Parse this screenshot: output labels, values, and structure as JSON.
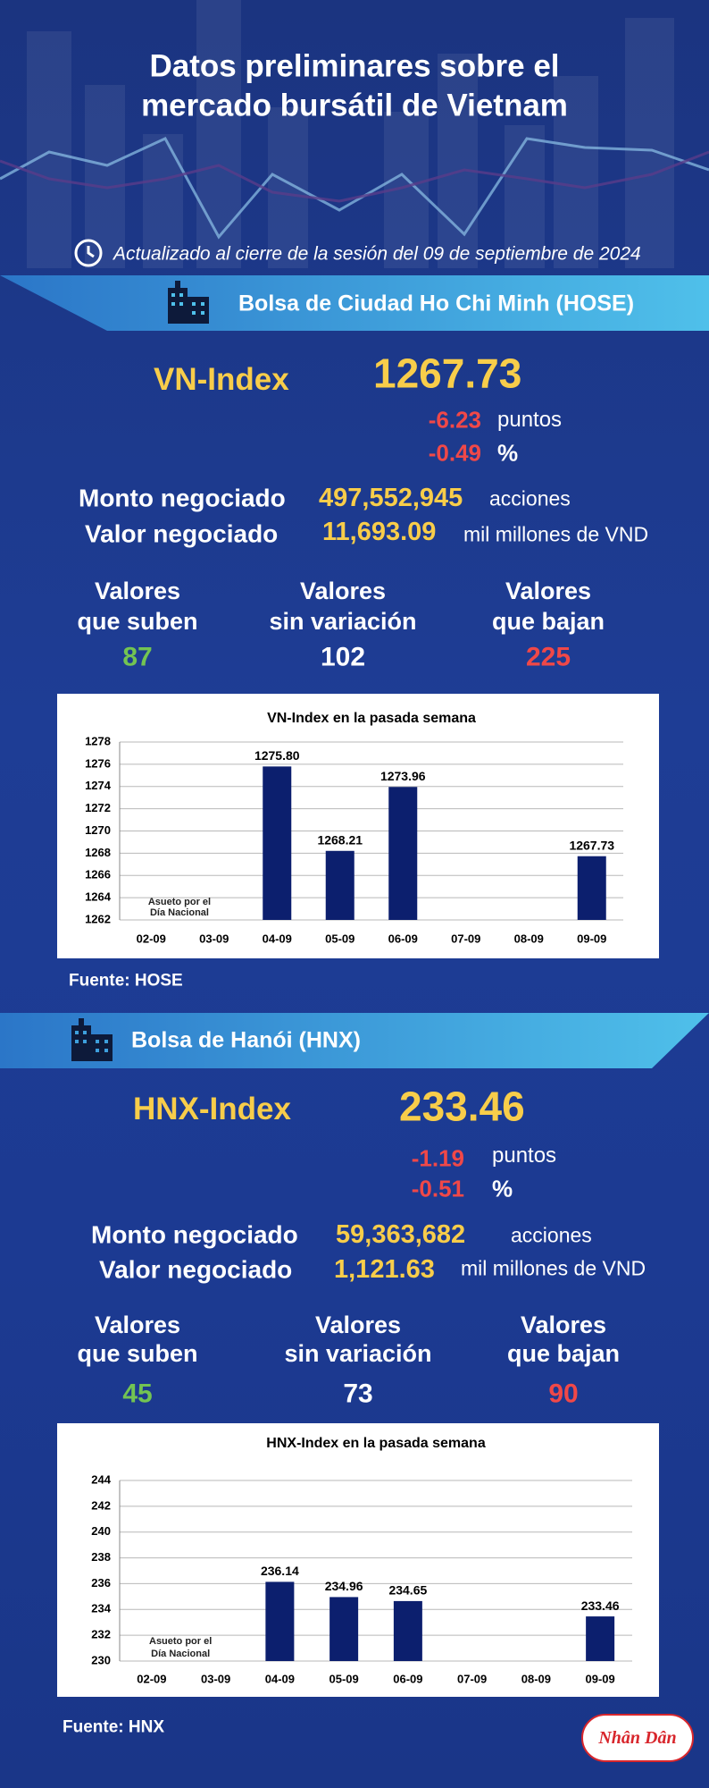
{
  "header": {
    "title": "Datos preliminares sobre el mercado bursátil de Vietnam",
    "updated": "Actualizado al cierre de la sesión del 09 de septiembre de 2024"
  },
  "sections": [
    {
      "exchange": "Bolsa de Ciudad Ho Chi Minh (HOSE)",
      "index_name": "VN-Index",
      "index_value": "1267.73",
      "change_points": "-6.23",
      "points_label": "puntos",
      "change_pct": "-0.49",
      "pct_label": "%",
      "volume_label": "Monto negociado",
      "volume": "497,552,945",
      "volume_unit": "acciones",
      "value_label": "Valor negociado",
      "value": "11,693.09",
      "value_unit": "mil millones de VND",
      "stats": [
        {
          "label": [
            "Valores",
            "que suben"
          ],
          "value": "87"
        },
        {
          "label": [
            "Valores",
            "sin variación"
          ],
          "value": "102"
        },
        {
          "label": [
            "Valores",
            "que bajan"
          ],
          "value": "225"
        }
      ],
      "chart": {
        "type": "bar",
        "title": "VN-Index en la pasada semana",
        "categories": [
          "02-09",
          "03-09",
          "04-09",
          "05-09",
          "06-09",
          "07-09",
          "08-09",
          "09-09"
        ],
        "values": [
          null,
          null,
          1275.8,
          1268.21,
          1273.96,
          null,
          null,
          1267.73
        ],
        "value_labels": [
          null,
          null,
          "1275.80",
          "1268.21",
          "1273.96",
          null,
          null,
          "1267.73"
        ],
        "color": "#0c1f6e",
        "ylim": [
          1262,
          1278
        ],
        "yticks": [
          1262,
          1264,
          1266,
          1268,
          1270,
          1272,
          1274,
          1276,
          1278
        ],
        "grid": true,
        "annotation": [
          "Asueto por el",
          "Día Nacional"
        ]
      },
      "source": "Fuente: HOSE"
    },
    {
      "exchange": "Bolsa de Hanói (HNX)",
      "index_name": "HNX-Index",
      "index_value": "233.46",
      "change_points": "-1.19",
      "points_label": "puntos",
      "change_pct": "-0.51",
      "pct_label": "%",
      "volume_label": "Monto negociado",
      "volume": "59,363,682",
      "volume_unit": "acciones",
      "value_label": "Valor negociado",
      "value": "1,121.63",
      "value_unit": "mil millones de VND",
      "stats": [
        {
          "label": [
            "Valores",
            "que suben"
          ],
          "value": "45"
        },
        {
          "label": [
            "Valores",
            "sin variación"
          ],
          "value": "73"
        },
        {
          "label": [
            "Valores",
            "que bajan"
          ],
          "value": "90"
        }
      ],
      "chart": {
        "type": "bar",
        "title": "HNX-Index en la pasada semana",
        "categories": [
          "02-09",
          "03-09",
          "04-09",
          "05-09",
          "06-09",
          "07-09",
          "08-09",
          "09-09"
        ],
        "values": [
          null,
          null,
          236.14,
          234.96,
          234.65,
          null,
          null,
          233.46
        ],
        "color": "#0c1f6e",
        "ylim": [
          230,
          244
        ],
        "yticks": [
          230,
          232,
          234,
          236,
          238,
          240,
          242,
          244
        ],
        "grid": true,
        "annotation": [
          "Asueto por el",
          "Día Nacional"
        ]
      },
      "source": "Fuente:  HNX"
    }
  ],
  "logo": "Nhân Dân"
}
